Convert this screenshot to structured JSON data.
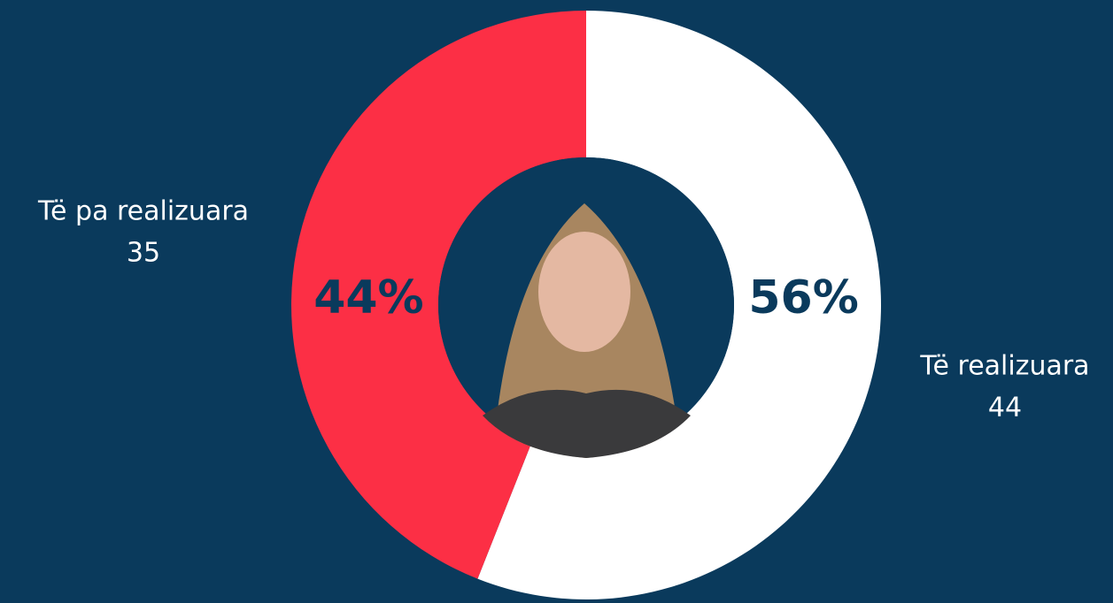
{
  "chart_data": {
    "type": "donut",
    "labels": [
      "Të realizuara",
      "Të pa realizuara"
    ],
    "values": [
      56,
      44
    ],
    "value_labels": [
      "56%",
      "44%"
    ],
    "counts": [
      44,
      35
    ],
    "colors": [
      "#ffffff",
      "#fc2f45"
    ]
  }
}
